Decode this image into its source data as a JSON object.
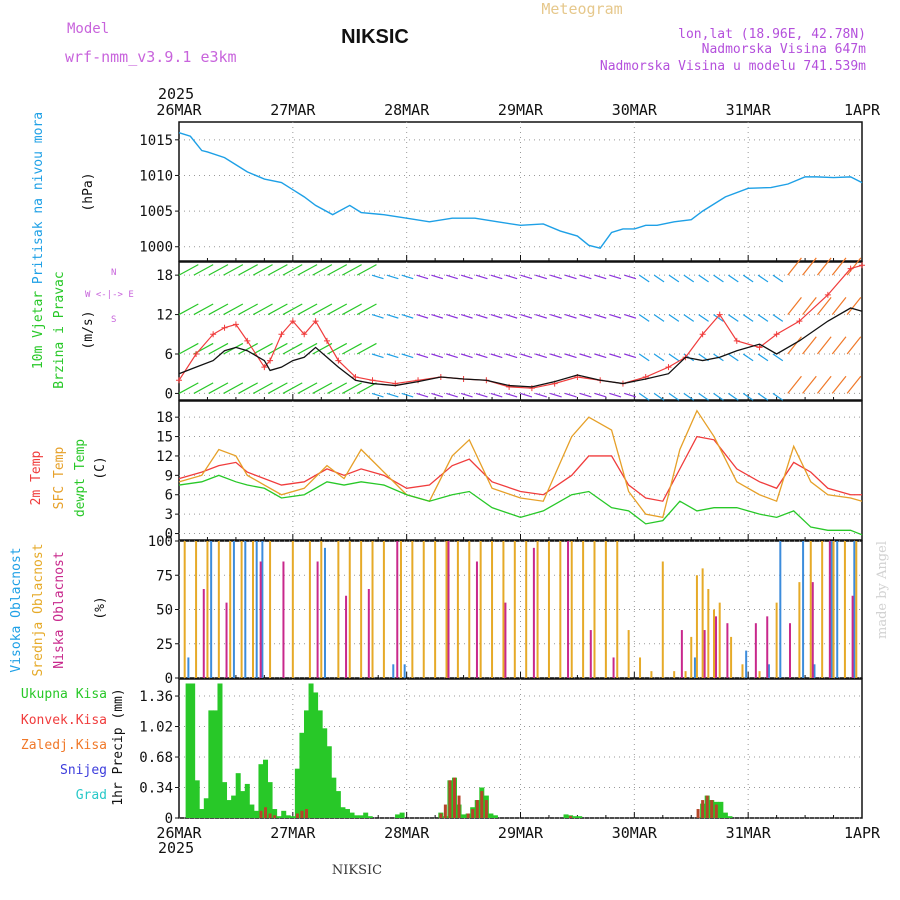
{
  "header": {
    "model_label": "Model",
    "model_name": "wrf-nmm_v3.9.1 e3km",
    "station": "NIKSIC",
    "product": "Meteogram",
    "coords": "lon,lat (18.96E, 42.78N)",
    "altitude": "Nadmorska Visina 647m",
    "model_altitude": "Nadmorska Visina u modelu 741.539m",
    "footer_station": "NIKSIC",
    "credit": "made by Angel",
    "year_top": "2025",
    "year_bottom": "2025"
  },
  "colors": {
    "pressure": "#1ea0e6",
    "temp2m": "#f03c3c",
    "sfc": "#e6a028",
    "dewpt": "#28c828",
    "high_cloud": "#3c8cdc",
    "mid_cloud": "#e6aa28",
    "low_cloud": "#c8288c",
    "precip": "#28c828",
    "conv": "#b4462a",
    "model_label": "#c864dc",
    "product": "#e6c88c"
  },
  "chart_data": [
    {
      "id": "pressure",
      "type": "line",
      "title": "Pritisak na nivou mora",
      "ylabel": "(hPa)",
      "x_labels": [
        "26MAR",
        "27MAR",
        "28MAR",
        "29MAR",
        "30MAR",
        "31MAR",
        "1APR"
      ],
      "x_range_days": [
        0,
        6
      ],
      "ylim": [
        998,
        1017.5
      ],
      "yticks": [
        1000,
        1005,
        1010,
        1015
      ],
      "series": [
        {
          "name": "MSLP",
          "x": [
            0,
            0.1,
            0.2,
            0.25,
            0.4,
            0.5,
            0.6,
            0.75,
            0.9,
            1.0,
            1.1,
            1.2,
            1.35,
            1.5,
            1.6,
            1.8,
            2.0,
            2.2,
            2.4,
            2.6,
            2.8,
            3.0,
            3.2,
            3.35,
            3.5,
            3.6,
            3.7,
            3.8,
            3.9,
            4.0,
            4.1,
            4.2,
            4.35,
            4.5,
            4.6,
            4.7,
            4.8,
            5.0,
            5.2,
            5.35,
            5.5,
            5.6,
            5.75,
            5.9,
            6.0
          ],
          "y": [
            1016,
            1015.5,
            1013.5,
            1013.3,
            1012.5,
            1011.5,
            1010.5,
            1009.5,
            1009,
            1008,
            1007,
            1005.8,
            1004.5,
            1005.8,
            1004.8,
            1004.5,
            1004,
            1003.5,
            1004,
            1004,
            1003.5,
            1003,
            1003.2,
            1002.2,
            1001.5,
            1000.2,
            999.8,
            1002,
            1002.5,
            1002.5,
            1003,
            1003,
            1003.5,
            1003.8,
            1005,
            1006,
            1007,
            1008.2,
            1008.3,
            1008.8,
            1009.8,
            1009.8,
            1009.7,
            1009.8,
            1009
          ]
        }
      ]
    },
    {
      "id": "wind",
      "type": "line",
      "title": "10m Vjetar",
      "title2": "Brzina i Pravac",
      "ylabel": "(m/s)",
      "legend_compass": [
        "N",
        "W <-|-> E",
        "S"
      ],
      "ylim": [
        -1,
        20
      ],
      "yticks": [
        0,
        6,
        12,
        18
      ],
      "series": [
        {
          "name": "wind speed",
          "x": [
            0,
            0.15,
            0.3,
            0.4,
            0.5,
            0.6,
            0.75,
            0.8,
            0.9,
            1.0,
            1.1,
            1.2,
            1.3,
            1.4,
            1.55,
            1.7,
            1.9,
            2.1,
            2.3,
            2.5,
            2.7,
            2.9,
            3.1,
            3.3,
            3.5,
            3.7,
            3.9,
            4.1,
            4.3,
            4.45,
            4.6,
            4.75,
            4.9,
            5.1,
            5.25,
            5.45,
            5.7,
            5.9,
            6.0
          ],
          "y": [
            3,
            4,
            5,
            6.5,
            7,
            6.5,
            5,
            3.5,
            4,
            5,
            5.5,
            7,
            5.5,
            4,
            2,
            1.5,
            1.2,
            1.8,
            2.5,
            2.2,
            2.0,
            1.2,
            1.0,
            1.8,
            2.8,
            2,
            1.5,
            2.2,
            3,
            5.5,
            5,
            5.5,
            6.5,
            7.5,
            6,
            8,
            11,
            13,
            12.5
          ]
        },
        {
          "name": "gust",
          "x": [
            0,
            0.15,
            0.3,
            0.4,
            0.5,
            0.6,
            0.75,
            0.8,
            0.9,
            1.0,
            1.1,
            1.2,
            1.3,
            1.4,
            1.55,
            1.7,
            1.9,
            2.1,
            2.3,
            2.5,
            2.7,
            2.9,
            3.1,
            3.3,
            3.5,
            3.7,
            3.9,
            4.1,
            4.3,
            4.45,
            4.6,
            4.75,
            4.9,
            5.1,
            5.25,
            5.45,
            5.7,
            5.9,
            6.0
          ],
          "y": [
            2,
            6,
            9,
            10,
            10.5,
            8,
            4,
            5,
            9,
            11,
            9,
            11,
            8,
            5,
            2.5,
            2,
            1.5,
            2,
            2.5,
            2.2,
            2,
            1,
            0.8,
            1.5,
            2.5,
            2,
            1.5,
            2.5,
            4,
            5.5,
            9,
            12,
            8,
            7,
            9,
            11,
            15,
            19,
            19.5
          ]
        }
      ]
    },
    {
      "id": "temperature",
      "type": "line",
      "ylabel": "(C)",
      "labels": [
        "2m Temp",
        "SFC Temp",
        "dewpt Temp"
      ],
      "ylim": [
        -1,
        20.5
      ],
      "yticks": [
        0,
        3,
        6,
        9,
        12,
        15,
        18
      ],
      "series": [
        {
          "name": "2m Temp",
          "x": [
            0,
            0.2,
            0.35,
            0.5,
            0.6,
            0.75,
            0.9,
            1.1,
            1.3,
            1.45,
            1.6,
            1.8,
            2.0,
            2.2,
            2.4,
            2.55,
            2.75,
            3.0,
            3.2,
            3.45,
            3.6,
            3.8,
            3.95,
            4.1,
            4.25,
            4.4,
            4.55,
            4.7,
            4.9,
            5.1,
            5.25,
            5.4,
            5.55,
            5.7,
            5.9,
            6.0
          ],
          "y": [
            8.5,
            9.5,
            10.5,
            11,
            9.5,
            8.5,
            7.5,
            8,
            10,
            9,
            10,
            9,
            7,
            7.5,
            10.5,
            11.5,
            8,
            6.5,
            6,
            9,
            12,
            12,
            7.5,
            5.5,
            5,
            10,
            15,
            14.5,
            10,
            8,
            7,
            11,
            9.5,
            7,
            6,
            6
          ]
        },
        {
          "name": "SFC Temp",
          "x": [
            0,
            0.2,
            0.35,
            0.5,
            0.6,
            0.75,
            0.9,
            1.1,
            1.3,
            1.45,
            1.6,
            1.8,
            2.0,
            2.2,
            2.4,
            2.55,
            2.75,
            3.0,
            3.2,
            3.45,
            3.6,
            3.8,
            3.95,
            4.1,
            4.25,
            4.4,
            4.55,
            4.7,
            4.9,
            5.1,
            5.25,
            5.4,
            5.55,
            5.7,
            5.9,
            6.0
          ],
          "y": [
            8,
            9,
            13,
            12,
            9,
            7.5,
            6,
            7,
            10.5,
            8.5,
            13,
            9.5,
            6,
            5,
            12,
            14.5,
            7,
            5.5,
            5,
            15,
            18,
            16,
            6.5,
            3,
            2.5,
            13,
            19,
            15,
            8,
            6,
            5,
            13.5,
            8,
            6,
            5.5,
            5
          ]
        },
        {
          "name": "dewpt Temp",
          "x": [
            0,
            0.2,
            0.35,
            0.5,
            0.6,
            0.75,
            0.9,
            1.1,
            1.3,
            1.45,
            1.6,
            1.8,
            2.0,
            2.2,
            2.4,
            2.55,
            2.75,
            3.0,
            3.2,
            3.45,
            3.6,
            3.8,
            3.95,
            4.1,
            4.25,
            4.4,
            4.55,
            4.7,
            4.9,
            5.1,
            5.25,
            5.4,
            5.55,
            5.7,
            5.9,
            6.0
          ],
          "y": [
            7.5,
            8,
            9,
            8,
            7.5,
            7,
            5.5,
            6,
            8,
            7.5,
            8,
            7.5,
            6,
            5,
            6,
            6.5,
            4,
            2.5,
            3.5,
            6,
            6.5,
            4,
            3.5,
            1.5,
            2,
            5,
            3.5,
            4,
            4,
            3,
            2.5,
            3.5,
            1,
            0.5,
            0.5,
            -0.2
          ]
        }
      ]
    },
    {
      "id": "clouds",
      "type": "bar",
      "ylabel": "(%)",
      "labels": [
        "Visoka Oblacnost",
        "Srednja Oblacnost",
        "Niska Oblacnost"
      ],
      "ylim": [
        0,
        100
      ],
      "yticks": [
        0,
        25,
        50,
        75,
        100
      ],
      "series": [
        {
          "name": "Visoka Oblacnost",
          "x": [
            0.1,
            0.3,
            0.5,
            0.6,
            0.7,
            0.75,
            1.3,
            1.9,
            2.0,
            4.55,
            5.0,
            5.2,
            5.3,
            5.5,
            5.6,
            5.75,
            5.8,
            5.95
          ],
          "values": [
            15,
            100,
            100,
            100,
            100,
            100,
            95,
            10,
            10,
            15,
            20,
            10,
            100,
            100,
            10,
            100,
            100,
            100
          ]
        },
        {
          "name": "Srednja Oblacnost",
          "x": [
            0.05,
            0.15,
            0.25,
            0.35,
            0.45,
            0.55,
            0.65,
            0.8,
            1.0,
            1.15,
            1.25,
            1.4,
            1.5,
            1.6,
            1.7,
            1.8,
            1.95,
            2.05,
            2.15,
            2.25,
            2.35,
            2.45,
            2.55,
            2.65,
            2.75,
            2.85,
            2.95,
            3.05,
            3.15,
            3.25,
            3.35,
            3.45,
            3.55,
            3.65,
            3.75,
            3.85,
            3.95,
            4.05,
            4.15,
            4.25,
            4.35,
            4.45,
            4.5,
            4.55,
            4.6,
            4.65,
            4.7,
            4.75,
            4.85,
            4.95,
            5.1,
            5.25,
            5.45,
            5.55,
            5.65,
            5.75,
            5.85,
            5.95
          ],
          "values": [
            100,
            100,
            100,
            100,
            100,
            100,
            100,
            100,
            100,
            100,
            100,
            100,
            100,
            100,
            100,
            100,
            100,
            100,
            100,
            100,
            100,
            100,
            100,
            100,
            100,
            100,
            100,
            100,
            100,
            100,
            100,
            100,
            100,
            100,
            100,
            100,
            35,
            15,
            5,
            85,
            5,
            5,
            30,
            75,
            80,
            65,
            50,
            55,
            30,
            10,
            5,
            55,
            70,
            100,
            100,
            100,
            100,
            100
          ]
        },
        {
          "name": "Niska Oblacnost",
          "x": [
            0.2,
            0.4,
            0.7,
            0.9,
            1.2,
            1.45,
            1.65,
            1.9,
            2.35,
            2.6,
            2.85,
            3.1,
            3.4,
            3.6,
            3.8,
            4.4,
            4.6,
            4.7,
            4.8,
            5.05,
            5.15,
            5.35,
            5.55,
            5.7,
            5.9
          ],
          "values": [
            65,
            55,
            85,
            85,
            85,
            60,
            65,
            100,
            100,
            85,
            55,
            95,
            100,
            35,
            15,
            35,
            35,
            45,
            40,
            40,
            45,
            40,
            70,
            100,
            60
          ]
        }
      ]
    },
    {
      "id": "precip",
      "type": "bar",
      "ylabel": "1hr Precip (mm)",
      "labels": [
        "Ukupna Kisa",
        "Konvek.Kisa",
        "Zaledj.Kisa",
        "Snijeg",
        "Grad"
      ],
      "label_colors": [
        "#28c828",
        "#f03c3c",
        "#f07828",
        "#3c3cdc",
        "#28c8c8"
      ],
      "ylim": [
        0,
        1.55
      ],
      "yticks": [
        0,
        0.34,
        0.68,
        1.02,
        1.36
      ],
      "series": [
        {
          "name": "Ukupna Kisa",
          "x": [
            0.08,
            0.12,
            0.16,
            0.2,
            0.24,
            0.28,
            0.32,
            0.36,
            0.4,
            0.44,
            0.48,
            0.52,
            0.56,
            0.6,
            0.64,
            0.68,
            0.72,
            0.76,
            0.8,
            0.84,
            0.88,
            0.92,
            0.96,
            1.0,
            1.04,
            1.08,
            1.12,
            1.16,
            1.2,
            1.24,
            1.28,
            1.32,
            1.36,
            1.4,
            1.44,
            1.48,
            1.52,
            1.56,
            1.6,
            1.64,
            1.68,
            1.92,
            1.96,
            2.3,
            2.34,
            2.38,
            2.42,
            2.46,
            2.5,
            2.54,
            2.58,
            2.62,
            2.66,
            2.7,
            2.74,
            2.78,
            3.4,
            3.44,
            3.48,
            3.52,
            4.6,
            4.64,
            4.68,
            4.72,
            4.76,
            4.8,
            4.84
          ],
          "values": [
            1.5,
            1.5,
            0.42,
            0.1,
            0.22,
            1.2,
            1.2,
            1.5,
            0.4,
            0.2,
            0.25,
            0.5,
            0.3,
            0.38,
            0.15,
            0.08,
            0.6,
            0.65,
            0.4,
            0.1,
            0.02,
            0.08,
            0.03,
            0.02,
            0.55,
            0.95,
            1.2,
            1.5,
            1.4,
            1.2,
            1.0,
            0.8,
            0.45,
            0.3,
            0.12,
            0.1,
            0.06,
            0.03,
            0.03,
            0.06,
            0.02,
            0.04,
            0.06,
            0.06,
            0.02,
            0.42,
            0.45,
            0.15,
            0.04,
            0.05,
            0.12,
            0.2,
            0.34,
            0.25,
            0.05,
            0.03,
            0.04,
            0.03,
            0.02,
            0.02,
            0.16,
            0.25,
            0.2,
            0.18,
            0.18,
            0.06,
            0.02
          ]
        },
        {
          "name": "Konvek.Kisa",
          "x": [
            0.72,
            0.76,
            0.8,
            0.84,
            1.04,
            1.08,
            1.12,
            2.3,
            2.34,
            2.38,
            2.42,
            2.46,
            2.54,
            2.58,
            2.62,
            2.66,
            2.7,
            3.44,
            4.56,
            4.6,
            4.64,
            4.68,
            4.72
          ],
          "values": [
            0.08,
            0.12,
            0.05,
            0.03,
            0.05,
            0.08,
            0.1,
            0.05,
            0.15,
            0.42,
            0.45,
            0.25,
            0.05,
            0.1,
            0.2,
            0.3,
            0.2,
            0.02,
            0.1,
            0.2,
            0.25,
            0.2,
            0.15
          ]
        }
      ]
    }
  ]
}
